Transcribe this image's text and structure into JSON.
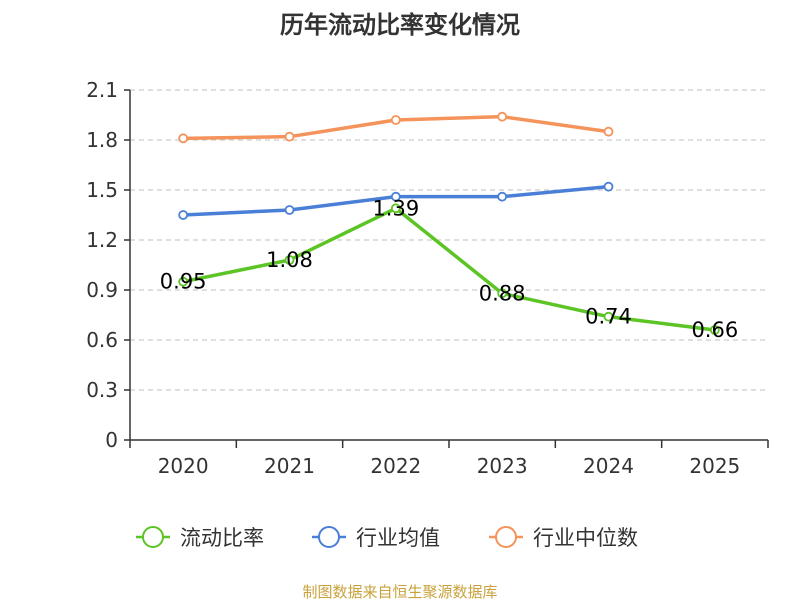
{
  "chart_data": {
    "type": "line",
    "title": "历年流动比率变化情况",
    "categories": [
      "2020",
      "2021",
      "2022",
      "2023",
      "2024",
      "2025"
    ],
    "ylim": [
      0,
      2.1
    ],
    "yticks": [
      "0",
      "0.3",
      "0.6",
      "0.9",
      "1.2",
      "1.5",
      "1.8",
      "2.1"
    ],
    "grid": true,
    "legend_position": "bottom",
    "series": [
      {
        "name": "流动比率",
        "color": "#5cc424",
        "values": [
          0.95,
          1.08,
          1.39,
          0.88,
          0.74,
          0.66
        ],
        "labels": [
          "0.95",
          "1.08",
          "1.39",
          "0.88",
          "0.74",
          "0.66"
        ]
      },
      {
        "name": "行业均值",
        "color": "#4a7fd8",
        "values": [
          1.35,
          1.38,
          1.46,
          1.46,
          1.52,
          null
        ]
      },
      {
        "name": "行业中位数",
        "color": "#f4935a",
        "values": [
          1.81,
          1.82,
          1.92,
          1.94,
          1.85,
          null
        ]
      }
    ]
  },
  "footer": {
    "source": "制图数据来自恒生聚源数据库"
  }
}
